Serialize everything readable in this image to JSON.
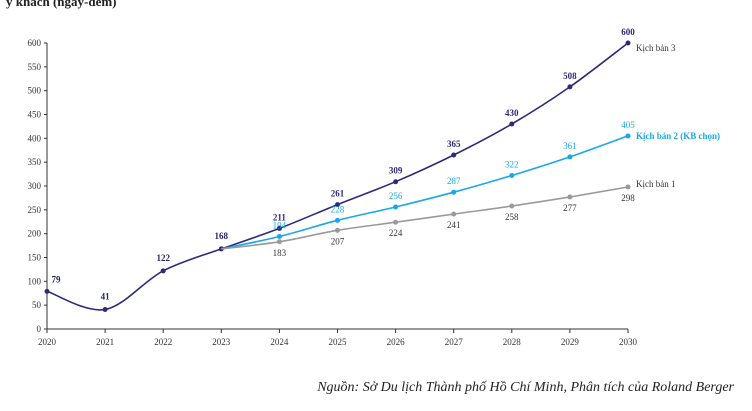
{
  "header_fragment": "ỳ khách (ngày-đêm)",
  "source_note": "Nguồn: Sở Du lịch Thành phố Hồ Chí Minh, Phân tích của Roland Berger",
  "colors": {
    "scenario3": "#2e2a7a",
    "scenario2": "#1aa7e8",
    "scenario1": "#9a9a9a",
    "axis": "#333333",
    "label_base": "#1f2466"
  },
  "chart_data": {
    "type": "line",
    "title": "",
    "xlabel": "",
    "ylabel": "",
    "x": [
      "2020",
      "2021",
      "2022",
      "2023",
      "2024",
      "2025",
      "2026",
      "2027",
      "2028",
      "2029",
      "2030"
    ],
    "ylim": [
      0,
      600
    ],
    "yticks": [
      "0",
      "50",
      "100",
      "150",
      "200",
      "250",
      "300",
      "350",
      "400",
      "450",
      "500",
      "550",
      "600"
    ],
    "grid": false,
    "history": {
      "x": [
        "2020",
        "2021",
        "2022",
        "2023"
      ],
      "values": [
        79,
        41,
        122,
        168
      ]
    },
    "series": [
      {
        "name": "Kịch bản 3",
        "color_key": "scenario3",
        "x": [
          "2023",
          "2024",
          "2025",
          "2026",
          "2027",
          "2028",
          "2029",
          "2030"
        ],
        "values": [
          168,
          211,
          261,
          309,
          365,
          430,
          508,
          600
        ]
      },
      {
        "name": "Kịch bản 2 (KB chọn)",
        "color_key": "scenario2",
        "x": [
          "2023",
          "2024",
          "2025",
          "2026",
          "2027",
          "2028",
          "2029",
          "2030"
        ],
        "values": [
          168,
          194,
          228,
          256,
          287,
          322,
          361,
          405
        ]
      },
      {
        "name": "Kịch bản 1",
        "color_key": "scenario1",
        "x": [
          "2023",
          "2024",
          "2025",
          "2026",
          "2027",
          "2028",
          "2029",
          "2030"
        ],
        "values": [
          168,
          183,
          207,
          224,
          241,
          258,
          277,
          298
        ]
      }
    ]
  }
}
